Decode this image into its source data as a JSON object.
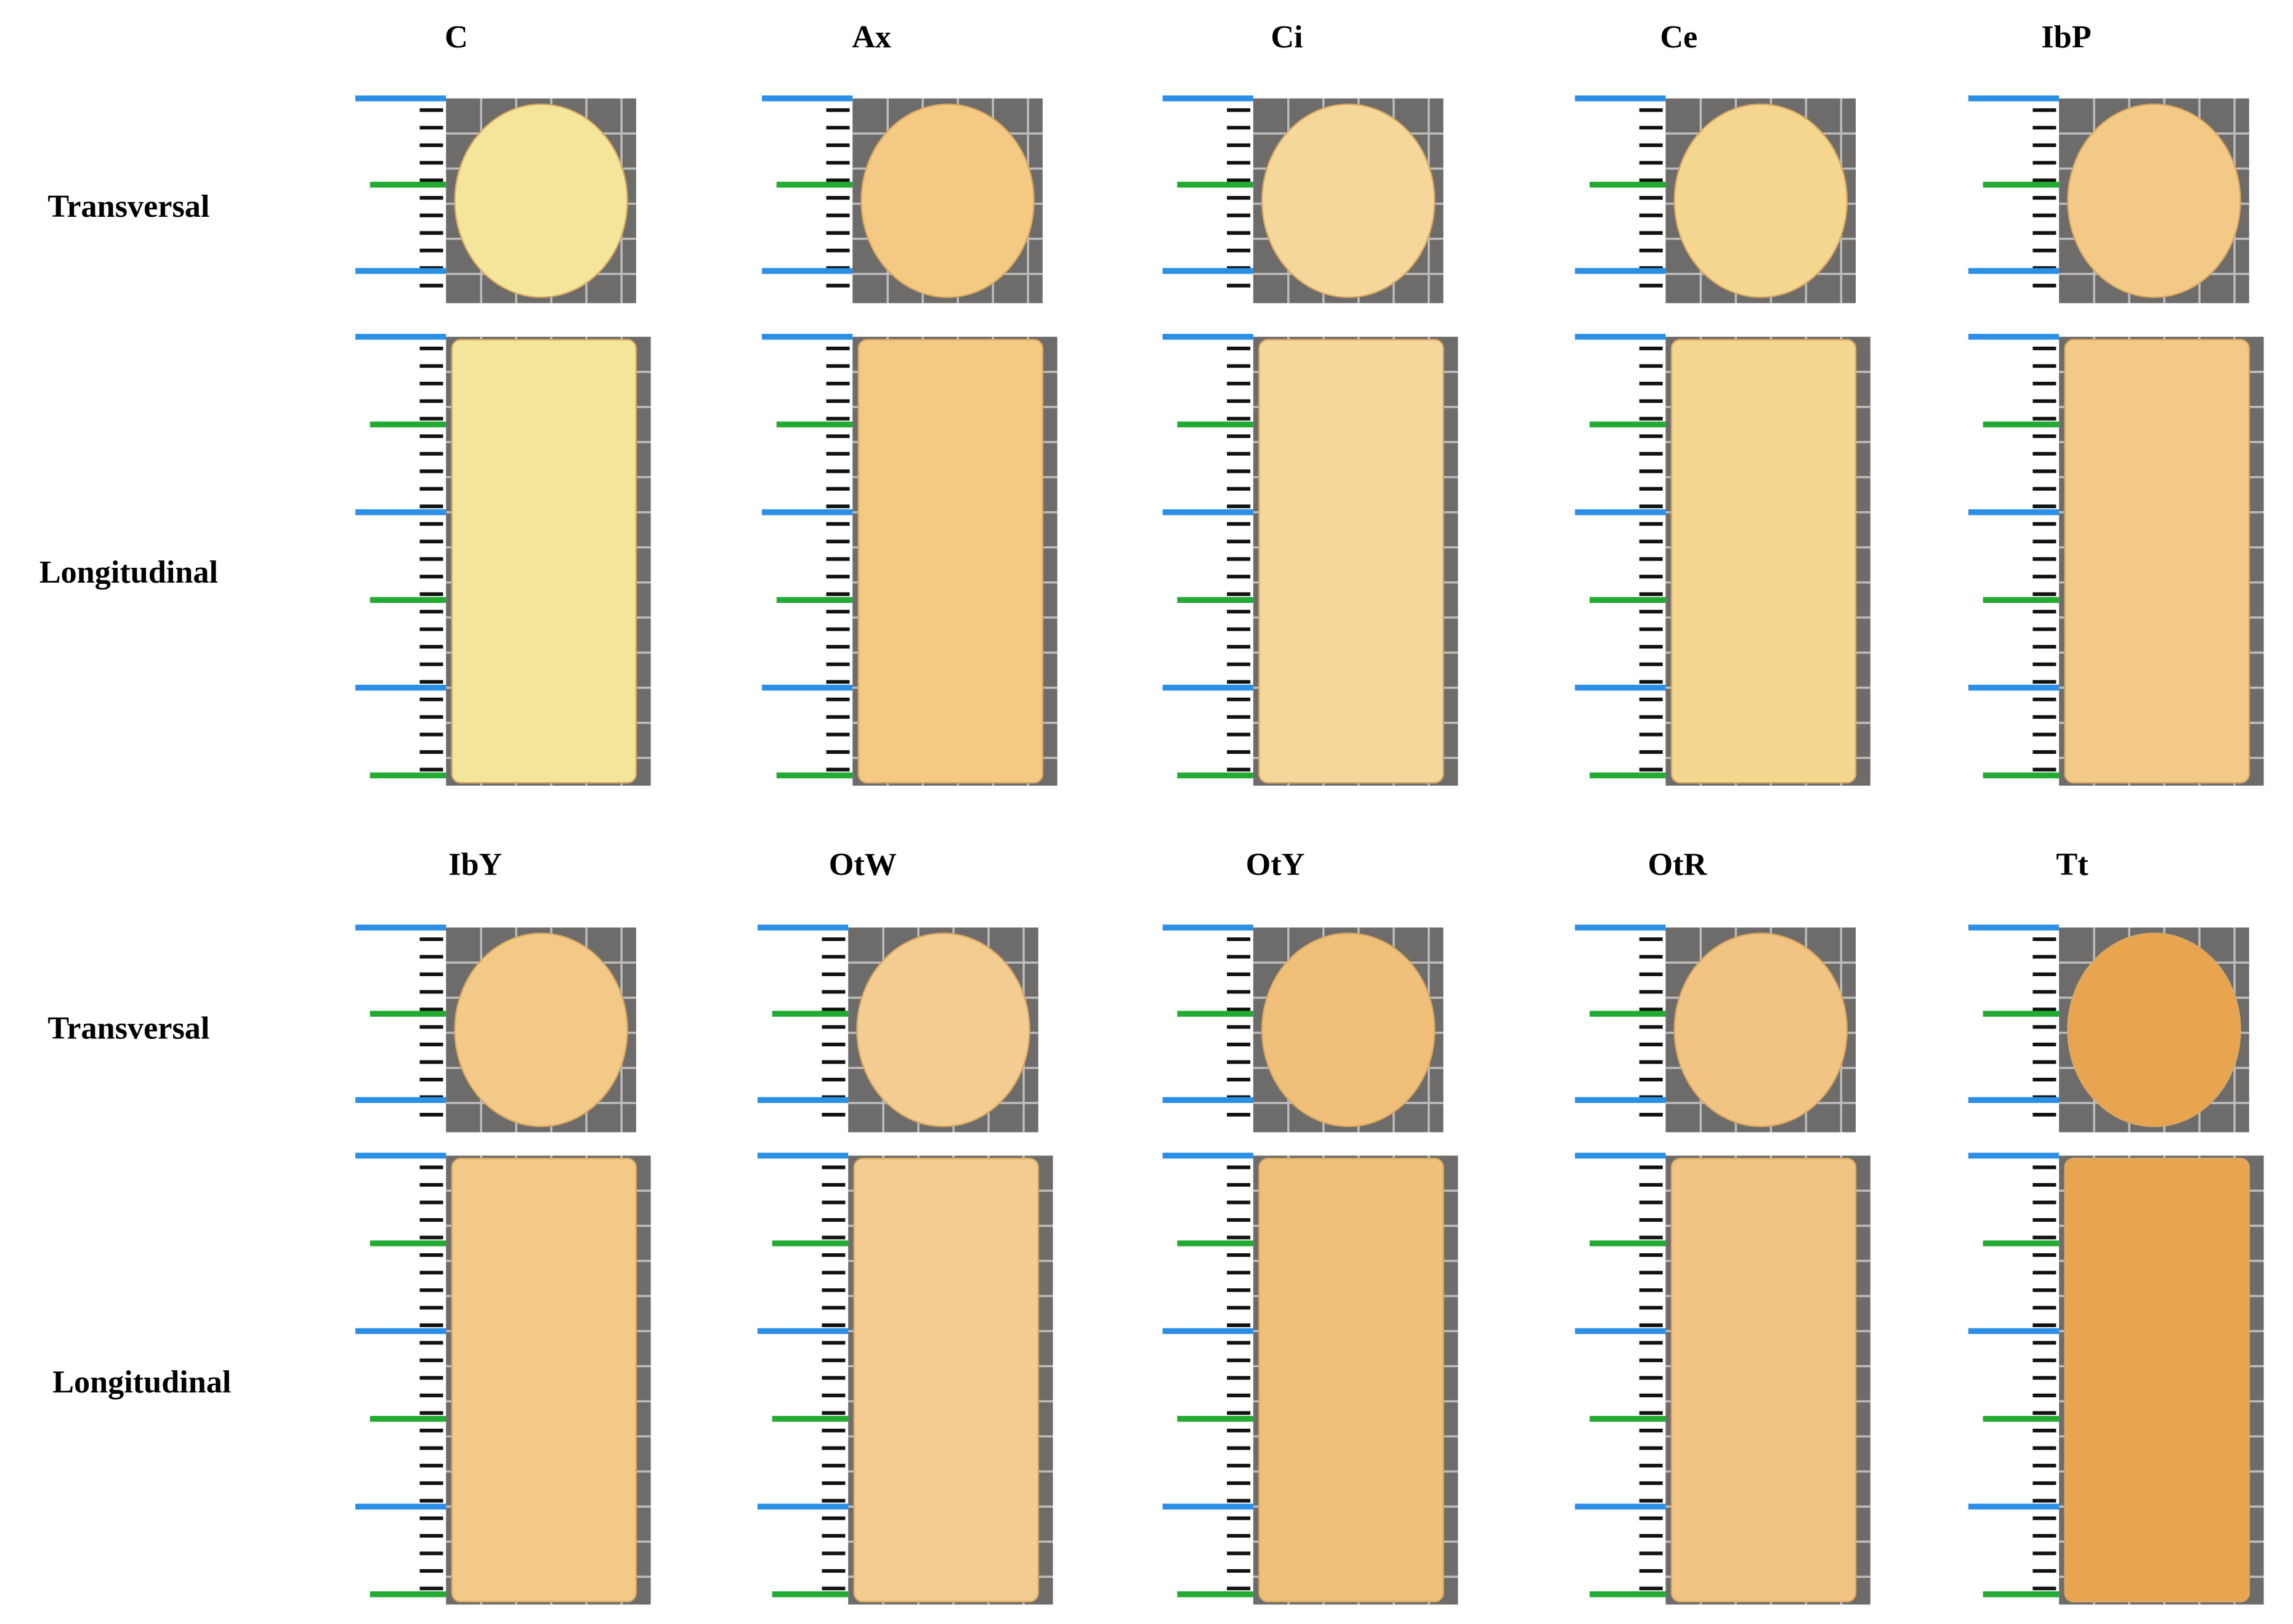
{
  "panels": [
    {
      "columns": [
        "C",
        "Ax",
        "Ci",
        "Ce",
        "IbP"
      ],
      "rows": [
        "Transversal",
        "Longitudinal"
      ]
    },
    {
      "columns": [
        "IbY",
        "OtW",
        "OtY",
        "OtR",
        "Tt"
      ],
      "rows": [
        "Transversal",
        "Longitudinal"
      ]
    }
  ]
}
